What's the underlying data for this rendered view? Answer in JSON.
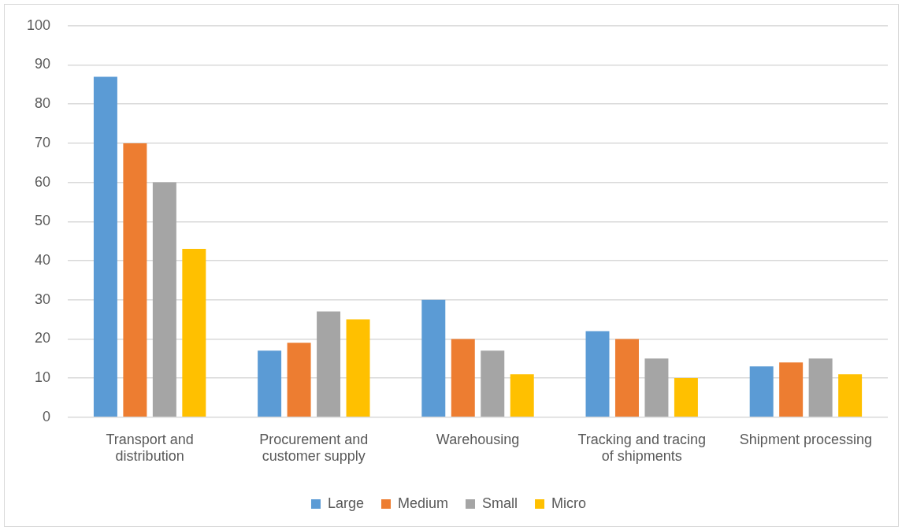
{
  "chart_data": {
    "type": "bar",
    "categories": [
      "Transport and distribution",
      "Procurement and customer supply",
      "Warehousing",
      "Tracking and tracing of shipments",
      "Shipment processing"
    ],
    "series": [
      {
        "name": "Large",
        "color": "#5b9bd5",
        "values": [
          87,
          17,
          30,
          22,
          13
        ]
      },
      {
        "name": "Medium",
        "color": "#ed7d31",
        "values": [
          70,
          19,
          20,
          20,
          14
        ]
      },
      {
        "name": "Small",
        "color": "#a5a5a5",
        "values": [
          60,
          27,
          17,
          15,
          15
        ]
      },
      {
        "name": "Micro",
        "color": "#ffc000",
        "values": [
          43,
          25,
          11,
          10,
          11
        ]
      }
    ],
    "ylim": [
      0,
      100
    ],
    "yticks": [
      0,
      10,
      20,
      30,
      40,
      50,
      60,
      70,
      80,
      90,
      100
    ],
    "grid": "y",
    "legend": "bottom"
  }
}
